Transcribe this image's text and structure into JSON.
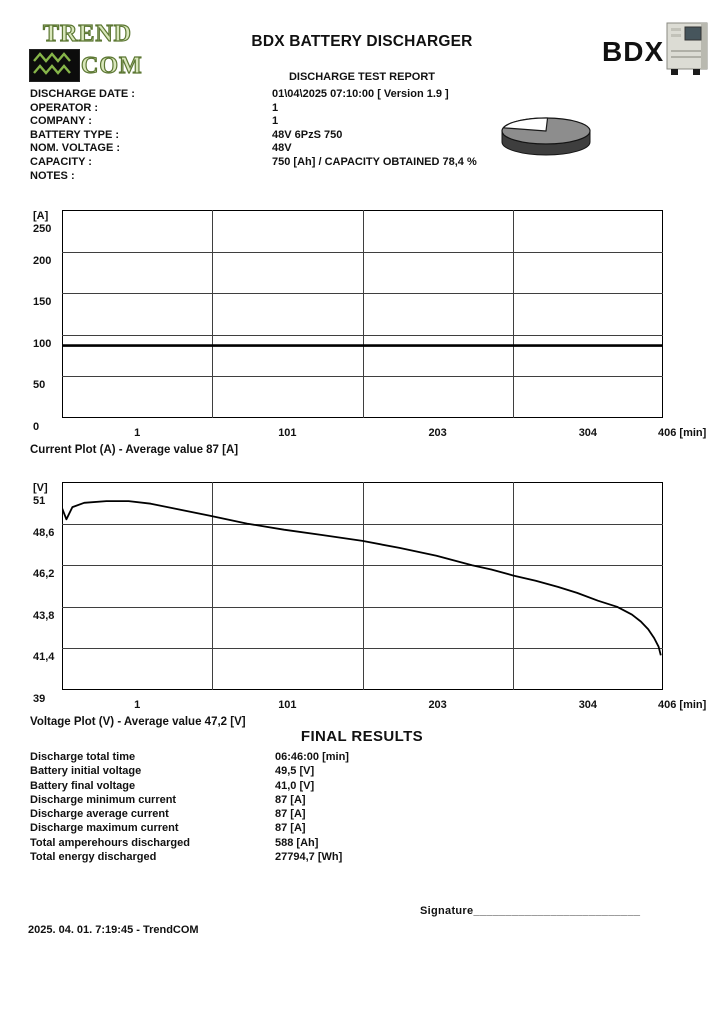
{
  "header": {
    "logo": {
      "line1": "TREND",
      "line2": "COM"
    },
    "title": "BDX BATTERY DISCHARGER",
    "subtitle": "DISCHARGE TEST REPORT",
    "bdx_text": "BDX"
  },
  "colors": {
    "text": "#111111",
    "logo_fill": "#d9e7bc",
    "logo_stroke": "#5c7733",
    "logo_wave": "#86b549",
    "grid": "#3f3f3f",
    "pie_top": "#8d8d8d",
    "pie_side": "#3e3e3e",
    "pie_slice": "#ffffff"
  },
  "info": {
    "rows": [
      {
        "label": "DISCHARGE DATE :",
        "value": "01\\04\\2025 07:10:00 [ Version 1.9 ]"
      },
      {
        "label": "OPERATOR :",
        "value": "1"
      },
      {
        "label": "COMPANY :",
        "value": "1"
      },
      {
        "label": "BATTERY TYPE :",
        "value": "48V 6PzS 750"
      },
      {
        "label": "NOM. VOLTAGE :",
        "value": "48V"
      },
      {
        "label": "CAPACITY :",
        "value": "750 [Ah] / CAPACITY OBTAINED 78,4 %"
      },
      {
        "label": "NOTES :",
        "value": ""
      }
    ]
  },
  "pie": {
    "obtained_pct": 78.4
  },
  "chart_data": [
    {
      "id": "current",
      "type": "line",
      "title": "Current Plot (A) - Average value 87 [A]",
      "y_unit": "[A]",
      "ylim": [
        0,
        250
      ],
      "yticks": [
        "250",
        "200",
        "150",
        "100",
        "50",
        "0"
      ],
      "xlim": [
        0,
        406
      ],
      "xticks": [
        "1",
        "101",
        "203",
        "304"
      ],
      "x_end_tick": "406 [min]",
      "avg_value": "87 [A]",
      "line_width": 2.6,
      "series": [
        {
          "name": "current",
          "points": [
            [
              0,
              87
            ],
            [
              406,
              87
            ]
          ]
        }
      ]
    },
    {
      "id": "voltage",
      "type": "line",
      "title": "Voltage Plot (V) - Average value 47,2 [V]",
      "y_unit": "[V]",
      "ylim": [
        39,
        51
      ],
      "yticks": [
        "51",
        "48,6",
        "46,2",
        "43,8",
        "41,4",
        "39"
      ],
      "xlim": [
        0,
        406
      ],
      "xticks": [
        "1",
        "101",
        "203",
        "304"
      ],
      "x_end_tick": "406 [min]",
      "avg_value": "47,2 [V]",
      "line_width": 1.8,
      "series": [
        {
          "name": "voltage",
          "points": [
            [
              0,
              49.5
            ],
            [
              3,
              48.85
            ],
            [
              7,
              49.55
            ],
            [
              15,
              49.8
            ],
            [
              30,
              49.9
            ],
            [
              45,
              49.9
            ],
            [
              60,
              49.75
            ],
            [
              80,
              49.4
            ],
            [
              100,
              49.05
            ],
            [
              125,
              48.6
            ],
            [
              150,
              48.25
            ],
            [
              175,
              47.95
            ],
            [
              203,
              47.6
            ],
            [
              228,
              47.2
            ],
            [
              253,
              46.75
            ],
            [
              277,
              46.2
            ],
            [
              290,
              45.95
            ],
            [
              305,
              45.6
            ],
            [
              320,
              45.3
            ],
            [
              335,
              44.95
            ],
            [
              348,
              44.6
            ],
            [
              362,
              44.15
            ],
            [
              375,
              43.8
            ],
            [
              385,
              43.35
            ],
            [
              391,
              42.95
            ],
            [
              396,
              42.5
            ],
            [
              400,
              42.0
            ],
            [
              403,
              41.5
            ],
            [
              404.5,
              41.0
            ]
          ]
        }
      ]
    }
  ],
  "final_results": {
    "heading": "FINAL RESULTS",
    "rows": [
      {
        "label": "Discharge total time",
        "value": "06:46:00 [min]"
      },
      {
        "label": "Battery initial voltage",
        "value": "49,5 [V]"
      },
      {
        "label": "Battery final voltage",
        "value": "41,0 [V]"
      },
      {
        "label": "Discharge minimum current",
        "value": "87 [A]"
      },
      {
        "label": "Discharge average current",
        "value": "87 [A]"
      },
      {
        "label": "Discharge maximum current",
        "value": "87 [A]"
      },
      {
        "label": "Total amperehours discharged",
        "value": "588 [Ah]"
      },
      {
        "label": "Total energy discharged",
        "value": "27794,7 [Wh]"
      }
    ]
  },
  "footer": {
    "signature_label": "Signature",
    "signature_line": "__________________________",
    "timestamp": "2025. 04. 01. 7:19:45 - TrendCOM"
  }
}
